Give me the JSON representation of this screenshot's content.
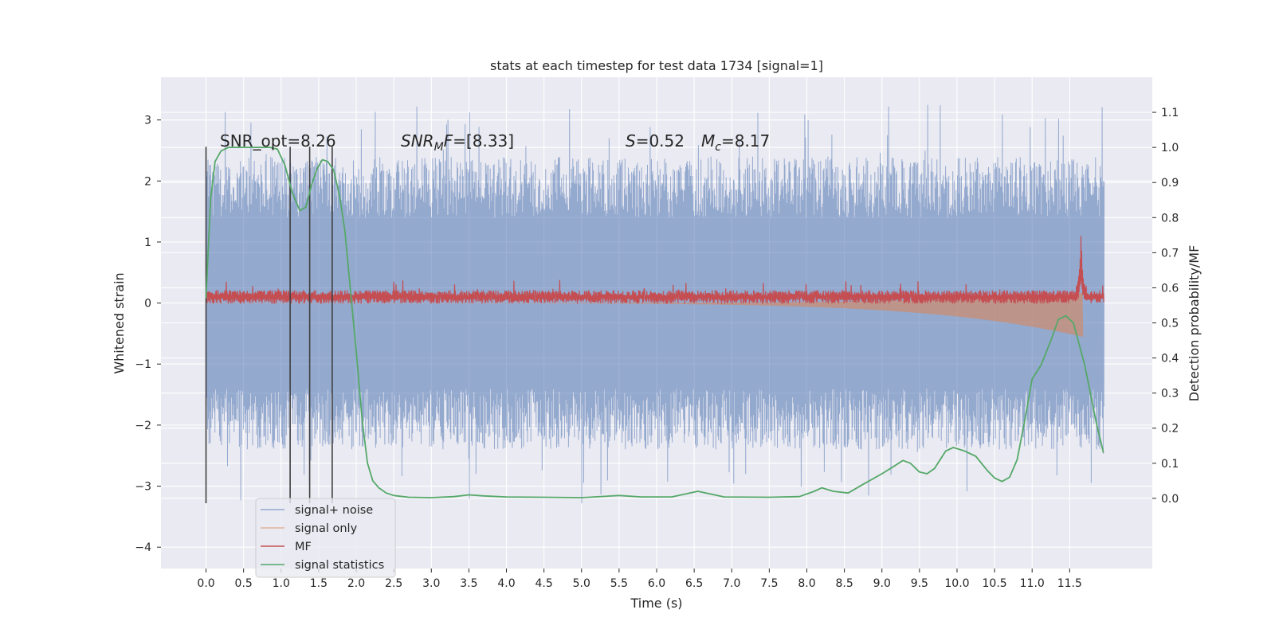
{
  "chart_data": {
    "type": "line",
    "title": "stats at each timestep for test data 1734 [signal=1]",
    "xlabel": "Time (s)",
    "ylabel": "Whitened strain",
    "y2label": "Detection probability/MF",
    "xlim": [
      -0.6,
      12.6
    ],
    "ylim": [
      -4.35,
      3.7
    ],
    "y2lim": [
      -0.2,
      1.2
    ],
    "xticks": [
      "0.0",
      "0.5",
      "1.0",
      "1.5",
      "2.0",
      "2.5",
      "3.0",
      "3.5",
      "4.0",
      "4.5",
      "5.0",
      "5.5",
      "6.0",
      "6.5",
      "7.0",
      "7.5",
      "8.0",
      "8.5",
      "9.0",
      "9.5",
      "10.0",
      "10.5",
      "11.0",
      "11.5"
    ],
    "yticks": [
      "3",
      "2",
      "1",
      "0",
      "−1",
      "−2",
      "−3",
      "−4"
    ],
    "y2ticks": [
      "1.1",
      "1.0",
      "0.9",
      "0.8",
      "0.7",
      "0.6",
      "0.5",
      "0.4",
      "0.3",
      "0.2",
      "0.1",
      "0.0"
    ],
    "grid": true,
    "legend_position": "lower-left",
    "annotations": {
      "snr_opt": "SNR_opt=8.26",
      "snr_mf_name": "SNR",
      "snr_mf_sub": "M",
      "snr_mf_suffix": "F",
      "snr_mf_value": "=[8.33]",
      "s_name": "S",
      "s_value": "=0.52",
      "mc_name": "M",
      "mc_sub": "c",
      "mc_value": "=8.17"
    },
    "vlines_x": [
      0.0,
      1.12,
      1.38,
      1.68
    ],
    "colors": {
      "noise": "#4c72b0",
      "signal": "#dd8452",
      "mf": "#c44e52",
      "stats": "#55a868",
      "background": "#eaeaf2",
      "grid": "#ffffff",
      "vline": "#3f3f3f"
    },
    "series": [
      {
        "name": "signal+ noise",
        "color": "#4c72b0",
        "kind": "noise",
        "x_range": [
          0.0,
          11.96
        ],
        "envelope": 1.4
      },
      {
        "name": "signal only",
        "color": "#dd8452",
        "kind": "chirp",
        "x_range": [
          0.0,
          11.68
        ],
        "peak_amplitude": 0.55
      },
      {
        "name": "MF",
        "color": "#c44e52",
        "kind": "mf",
        "x_range": [
          0.0,
          11.96
        ],
        "baseline": 0.1,
        "peak_x": 11.65,
        "peak_y": 1.0
      },
      {
        "name": "signal statistics",
        "color": "#55a868",
        "kind": "line",
        "axis": "y2",
        "points": [
          [
            0.0,
            0.57
          ],
          [
            0.06,
            0.85
          ],
          [
            0.12,
            0.96
          ],
          [
            0.2,
            0.99
          ],
          [
            0.3,
            1.0
          ],
          [
            0.5,
            1.0
          ],
          [
            0.7,
            1.0
          ],
          [
            0.85,
            1.0
          ],
          [
            0.95,
            0.995
          ],
          [
            1.05,
            0.95
          ],
          [
            1.15,
            0.87
          ],
          [
            1.25,
            0.82
          ],
          [
            1.33,
            0.83
          ],
          [
            1.4,
            0.89
          ],
          [
            1.48,
            0.94
          ],
          [
            1.55,
            0.965
          ],
          [
            1.62,
            0.96
          ],
          [
            1.7,
            0.935
          ],
          [
            1.78,
            0.86
          ],
          [
            1.85,
            0.76
          ],
          [
            1.92,
            0.6
          ],
          [
            2.0,
            0.42
          ],
          [
            2.08,
            0.22
          ],
          [
            2.15,
            0.1
          ],
          [
            2.22,
            0.05
          ],
          [
            2.3,
            0.03
          ],
          [
            2.4,
            0.015
          ],
          [
            2.5,
            0.008
          ],
          [
            2.7,
            0.003
          ],
          [
            3.0,
            0.002
          ],
          [
            3.3,
            0.005
          ],
          [
            3.5,
            0.01
          ],
          [
            3.7,
            0.007
          ],
          [
            4.0,
            0.004
          ],
          [
            4.5,
            0.003
          ],
          [
            5.0,
            0.002
          ],
          [
            5.5,
            0.008
          ],
          [
            5.8,
            0.004
          ],
          [
            6.2,
            0.004
          ],
          [
            6.55,
            0.02
          ],
          [
            6.9,
            0.004
          ],
          [
            7.5,
            0.003
          ],
          [
            7.9,
            0.005
          ],
          [
            8.1,
            0.02
          ],
          [
            8.2,
            0.03
          ],
          [
            8.35,
            0.02
          ],
          [
            8.55,
            0.015
          ],
          [
            8.75,
            0.04
          ],
          [
            9.0,
            0.07
          ],
          [
            9.15,
            0.09
          ],
          [
            9.28,
            0.108
          ],
          [
            9.38,
            0.1
          ],
          [
            9.5,
            0.075
          ],
          [
            9.6,
            0.07
          ],
          [
            9.7,
            0.085
          ],
          [
            9.85,
            0.135
          ],
          [
            9.95,
            0.145
          ],
          [
            10.1,
            0.135
          ],
          [
            10.25,
            0.12
          ],
          [
            10.4,
            0.08
          ],
          [
            10.5,
            0.058
          ],
          [
            10.6,
            0.048
          ],
          [
            10.7,
            0.06
          ],
          [
            10.8,
            0.11
          ],
          [
            10.9,
            0.22
          ],
          [
            11.0,
            0.34
          ],
          [
            11.12,
            0.38
          ],
          [
            11.25,
            0.45
          ],
          [
            11.35,
            0.51
          ],
          [
            11.45,
            0.52
          ],
          [
            11.55,
            0.5
          ],
          [
            11.7,
            0.38
          ],
          [
            11.85,
            0.22
          ],
          [
            11.95,
            0.13
          ]
        ]
      }
    ]
  }
}
